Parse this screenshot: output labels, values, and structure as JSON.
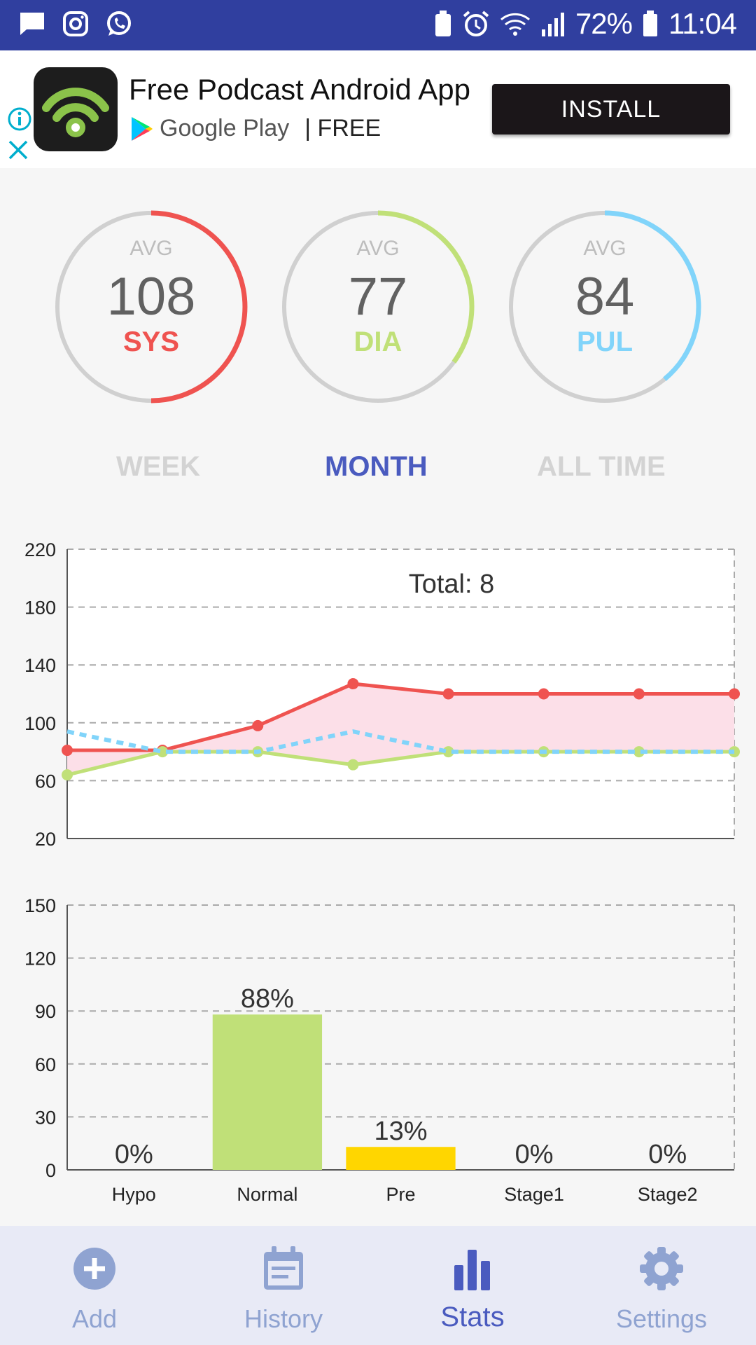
{
  "status_bar": {
    "battery": "72%",
    "time": "11:04"
  },
  "ad": {
    "title": "Free Podcast Android App",
    "store": "Google Play",
    "price": "| FREE",
    "install_label": "INSTALL"
  },
  "gauges": [
    {
      "avg_label": "AVG",
      "value": "108",
      "label": "SYS",
      "color": "#ef5350",
      "fraction": 0.5
    },
    {
      "avg_label": "AVG",
      "value": "77",
      "label": "DIA",
      "color": "#c0e078",
      "fraction": 0.35
    },
    {
      "avg_label": "AVG",
      "value": "84",
      "label": "PUL",
      "color": "#81d4fa",
      "fraction": 0.39
    }
  ],
  "period_tabs": {
    "week": "WEEK",
    "month": "MONTH",
    "all_time": "ALL TIME",
    "selected": "MONTH"
  },
  "chart_data": [
    {
      "type": "line",
      "title": "Total: 8",
      "x": [
        1,
        2,
        3,
        4,
        5,
        6,
        7,
        8
      ],
      "ylim": [
        20,
        220
      ],
      "yticks": [
        20,
        60,
        100,
        140,
        180,
        220
      ],
      "grid": true,
      "series": [
        {
          "values": [
            81,
            81,
            98,
            127,
            120,
            120,
            120,
            120
          ],
          "color": "#ef5350"
        },
        {
          "values": [
            64,
            80,
            80,
            71,
            80,
            80,
            80,
            80
          ],
          "color": "#c0e078"
        },
        {
          "values": [
            94,
            80,
            80,
            94,
            80,
            80,
            80,
            80
          ],
          "color": "#81d4fa"
        }
      ]
    },
    {
      "type": "bar",
      "categories": [
        "Hypo",
        "Normal",
        "Pre",
        "Stage1",
        "Stage2"
      ],
      "values": [
        0,
        88,
        13,
        0,
        0
      ],
      "labels": [
        "0%",
        "88%",
        "13%",
        "0%",
        "0%"
      ],
      "colors": [
        "#c0e078",
        "#c0e078",
        "#ffd600",
        "#ef9a9a",
        "#ef5350"
      ],
      "ylim": [
        0,
        150
      ],
      "yticks": [
        0,
        30,
        60,
        90,
        120,
        150
      ],
      "grid": true
    }
  ],
  "bottom_nav": [
    {
      "label": "Add",
      "icon": "add-circle-icon"
    },
    {
      "label": "History",
      "icon": "calendar-icon"
    },
    {
      "label": "Stats",
      "icon": "bar-chart-icon"
    },
    {
      "label": "Settings",
      "icon": "gear-icon"
    }
  ],
  "active_nav": "Stats"
}
